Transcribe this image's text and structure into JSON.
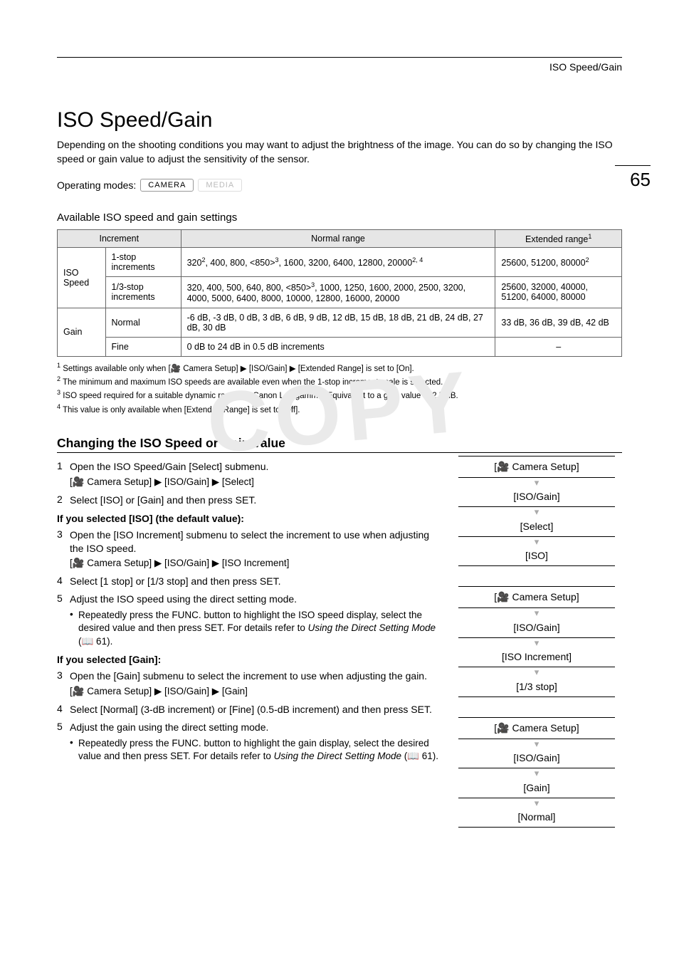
{
  "header": {
    "breadcrumb": "ISO Speed/Gain"
  },
  "page_number": "65",
  "title": "ISO Speed/Gain",
  "intro": "Depending on the shooting conditions you may want to adjust the brightness of the image. You can do so by changing the ISO speed or gain value to adjust the sensitivity of the sensor.",
  "operating_modes": {
    "label": "Operating modes:",
    "modes": [
      "CAMERA",
      "MEDIA"
    ]
  },
  "table_title": "Available ISO speed and gain settings",
  "table": {
    "headers": [
      "Increment",
      "Normal range",
      "Extended range"
    ],
    "header_sup": "1",
    "row_iso_label": "ISO Speed",
    "row_gain_label": "Gain",
    "rows": [
      {
        "increment": "1-stop increments",
        "normal_html": "320<sup>2</sup>, 400, 800, &lt;850&gt;<sup>3</sup>, 1600, 3200, 6400, 12800, 20000<sup>2, 4</sup>",
        "extended_html": "25600, 51200, 80000<sup>2</sup>"
      },
      {
        "increment": "1/3-stop increments",
        "normal_html": "320, 400, 500, 640, 800, &lt;850&gt;<sup>3</sup>, 1000, 1250, 1600, 2000, 2500, 3200, 4000, 5000, 6400, 8000, 10000, 12800, 16000, 20000",
        "extended_html": "25600, 32000, 40000, 51200, 64000, 80000"
      },
      {
        "increment": "Normal",
        "normal_html": "-6 dB, -3 dB, 0 dB, 3 dB, 6 dB, 9 dB, 12 dB, 15 dB, 18 dB, 21 dB, 24 dB, 27 dB, 30 dB",
        "extended_html": "33 dB, 36 dB, 39 dB, 42 dB"
      },
      {
        "increment": "Fine",
        "normal_html": "0 dB to 24 dB in 0.5 dB increments",
        "extended_html": "–"
      }
    ]
  },
  "footnotes": {
    "f1": " Settings available only when [🎥 Camera Setup] ▶ [ISO/Gain] ▶ [Extended Range] is set to [On].",
    "f2": " The minimum and maximum ISO speeds are available even when the 1-stop increment scale is selected.",
    "f3": " ISO speed required for a suitable dynamic range for Canon Log gamma. Equivalent to a gain value of 2.5 dB.",
    "f4": " This value is only available when [Extended Range] is set to [Off]."
  },
  "section_heading": "Changing the ISO Speed or Gain Value",
  "steps": {
    "s1": "Open the ISO Speed/Gain [Select] submenu.",
    "s1_path": "[🎥 Camera Setup] ▶ [ISO/Gain] ▶ [Select]",
    "s2": "Select [ISO] or [Gain] and then press SET.",
    "iso_label": "If you selected [ISO] (the default value):",
    "s3_iso": "Open the [ISO Increment] submenu to select the increment to use when adjusting the ISO speed.",
    "s3_iso_path": "[🎥 Camera Setup] ▶ [ISO/Gain] ▶ [ISO Increment]",
    "s4_iso": "Select [1 stop] or [1/3 stop] and then press SET.",
    "s5_iso": "Adjust the ISO speed using the direct setting mode.",
    "s5_iso_bullet_a": "Repeatedly press the FUNC. button to highlight the ISO speed display, select the desired value and then press SET. For details refer to ",
    "s5_iso_bullet_b": "Using the Direct Setting Mode",
    "s5_iso_bullet_c": " (📖 61).",
    "gain_label": "If you selected [Gain]:",
    "s3_gain": "Open the [Gain] submenu to select the increment to use when adjusting the gain.",
    "s3_gain_path": "[🎥 Camera Setup] ▶ [ISO/Gain] ▶ [Gain]",
    "s4_gain": "Select [Normal] (3-dB increment) or [Fine] (0.5-dB increment) and then press SET.",
    "s5_gain": "Adjust the gain using the direct setting mode.",
    "s5_gain_bullet_a": "Repeatedly press the FUNC. button to highlight the gain display, select the desired value and then press SET. For details refer to ",
    "s5_gain_bullet_b": "Using the Direct Setting Mode",
    "s5_gain_bullet_c": " (📖 61)."
  },
  "menu_paths": {
    "block1": [
      "Camera Setup",
      "[ISO/Gain]",
      "[Select]",
      "[ISO]"
    ],
    "block2": [
      "Camera Setup",
      "[ISO/Gain]",
      "[ISO Increment]",
      "[1/3 stop]"
    ],
    "block3": [
      "Camera Setup",
      "[ISO/Gain]",
      "[Gain]",
      "[Normal]"
    ]
  },
  "watermark": "COPY"
}
